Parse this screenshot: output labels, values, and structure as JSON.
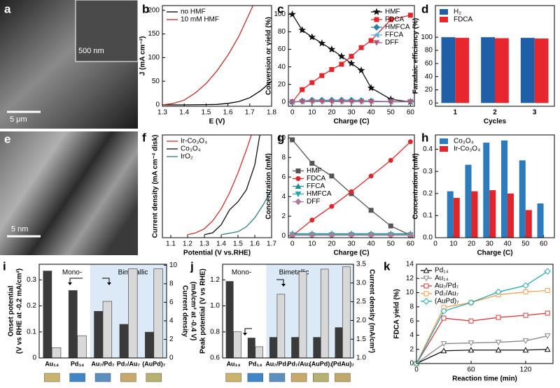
{
  "images": [
    {
      "label": "a",
      "texts": [
        "5 μm",
        "500 nm"
      ]
    },
    {
      "label": "e",
      "texts": [
        "5 nm"
      ]
    }
  ],
  "chart_data": [
    {
      "type": "line",
      "label": "b",
      "xlabel": "E (V)",
      "ylabel": [
        "J (mA cm⁻²)"
      ],
      "xlim": [
        1.3,
        1.8
      ],
      "xticks": [
        1.3,
        1.4,
        1.5,
        1.6,
        1.7,
        1.8
      ],
      "ylim": [
        -3,
        210
      ],
      "yticks": [
        0,
        50,
        100,
        150,
        200
      ],
      "legend": "upper left",
      "series": [
        {
          "name": "no HMF",
          "color": "#000000",
          "x": [
            1.3,
            1.4,
            1.5,
            1.55,
            1.6,
            1.65,
            1.7,
            1.75,
            1.8
          ],
          "values": [
            0,
            0,
            0.5,
            1,
            3,
            7,
            15,
            30,
            50
          ]
        },
        {
          "name": "10 mM HMF",
          "color": "#c0302a",
          "x": [
            1.3,
            1.35,
            1.4,
            1.45,
            1.5,
            1.55,
            1.6,
            1.65,
            1.7,
            1.715
          ],
          "values": [
            0,
            3,
            10,
            25,
            45,
            72,
            105,
            145,
            195,
            210
          ]
        }
      ]
    },
    {
      "type": "line",
      "label": "c",
      "xlabel": "Charge (C)",
      "ylabel": [
        "Conversion or yield (%)"
      ],
      "xlim": [
        -2,
        62
      ],
      "xticks": [
        0,
        10,
        20,
        30,
        40,
        50,
        60
      ],
      "ylim": [
        -5,
        110
      ],
      "yticks": [
        0,
        20,
        40,
        60,
        80,
        100
      ],
      "legend": "upper right",
      "x": [
        0,
        5,
        10,
        15,
        20,
        25,
        30,
        35,
        40,
        50,
        60
      ],
      "series": [
        {
          "name": "HMF",
          "color": "#111111",
          "marker": "star",
          "values": [
            100,
            82,
            74,
            67,
            60,
            52,
            44,
            36,
            16,
            3,
            0
          ]
        },
        {
          "name": "FDCA",
          "color": "#e0262b",
          "marker": "square",
          "values": [
            0,
            14,
            22,
            30,
            37,
            43,
            52,
            62,
            70,
            94,
            99
          ]
        },
        {
          "name": "HMFCA",
          "color": "#2a7fa8",
          "marker": "diamond",
          "values": [
            0,
            1,
            2,
            2,
            2,
            2,
            2,
            1.5,
            1,
            0.5,
            0.3
          ]
        },
        {
          "name": "FFCA",
          "color": "#6aaed6",
          "marker": "tri-left",
          "values": [
            0,
            0.5,
            1,
            1,
            1,
            1,
            1,
            1,
            0.5,
            0.3,
            0.2
          ]
        },
        {
          "name": "DFF",
          "color": "#b05a7a",
          "marker": "tri-down",
          "values": [
            0,
            0.2,
            0.3,
            0.3,
            0.3,
            0.3,
            0.2,
            0.2,
            0.2,
            0.1,
            0.1
          ]
        }
      ]
    },
    {
      "type": "bar",
      "label": "d",
      "xlabel": "Cycles",
      "ylabel": [
        "Faradaic efficiency (%)"
      ],
      "categories": [
        "1",
        "2",
        "3"
      ],
      "ylim": [
        -5,
        148
      ],
      "yticks": [
        0,
        20,
        40,
        60,
        80,
        100
      ],
      "legend": "upper left",
      "series": [
        {
          "name": "H₂",
          "color": "#1f5fa8",
          "values": [
            100,
            100,
            99
          ]
        },
        {
          "name": "FDCA",
          "color": "#e8262e",
          "values": [
            99,
            98.5,
            98
          ]
        }
      ]
    },
    {
      "type": "line",
      "label": "f",
      "xlabel": "Potential (V vs.RHE)",
      "ylabel": [
        "Current density (mA cm⁻² disk)"
      ],
      "xlim": [
        1.05,
        1.7
      ],
      "xticks": [
        1.1,
        1.2,
        1.3,
        1.4,
        1.5,
        1.6,
        1.7
      ],
      "ylim": [
        -3,
        100
      ],
      "legend": "upper left",
      "series": [
        {
          "name": "Ir-Co₃O₄",
          "color": "#d23030",
          "x": [
            1.2,
            1.25,
            1.3,
            1.35,
            1.4,
            1.45,
            1.5,
            1.55,
            1.58
          ],
          "values": [
            0,
            2,
            6,
            14,
            26,
            42,
            62,
            85,
            100
          ]
        },
        {
          "name": "Co₃O₄",
          "color": "#111111",
          "x": [
            1.3,
            1.35,
            1.4,
            1.45,
            1.5,
            1.55,
            1.6,
            1.63
          ],
          "values": [
            0,
            2,
            10,
            25,
            33,
            45,
            70,
            100
          ]
        },
        {
          "name": "IrO₂",
          "color": "#2e7d80",
          "x": [
            1.4,
            1.5,
            1.55,
            1.6,
            1.65,
            1.7
          ],
          "values": [
            0,
            3,
            8,
            17,
            30,
            45
          ]
        }
      ]
    },
    {
      "type": "line",
      "label": "g",
      "xlabel": "Charge (C)",
      "ylabel": [
        "Concentration (mM)"
      ],
      "xlim": [
        -2,
        62
      ],
      "xticks": [
        0,
        10,
        20,
        30,
        40,
        50,
        60
      ],
      "ylim": [
        -0.2,
        10.3
      ],
      "yticks": [
        0,
        2,
        4,
        6,
        8,
        10
      ],
      "legend": "center left",
      "x": [
        0,
        10,
        20,
        30,
        40,
        50,
        60
      ],
      "series": [
        {
          "name": "HMF",
          "color": "#555555",
          "marker": "square",
          "values": [
            9.8,
            7.4,
            6.1,
            4.3,
            2.6,
            1.0,
            0.05
          ]
        },
        {
          "name": "FDCA",
          "color": "#e0262b",
          "marker": "circle",
          "values": [
            0,
            1.6,
            3.0,
            4.5,
            6.1,
            7.7,
            9.6
          ]
        },
        {
          "name": "FFCA",
          "color": "#1f8a8a",
          "marker": "triangle",
          "values": [
            0.2,
            0.2,
            0.2,
            0.2,
            0.2,
            0.2,
            0.2
          ]
        },
        {
          "name": "HMFCA",
          "color": "#2aa6b0",
          "marker": "tri-down",
          "values": [
            0.1,
            0.1,
            0.1,
            0.1,
            0.1,
            0.1,
            0.1
          ]
        },
        {
          "name": "DFF",
          "color": "#b07a9a",
          "marker": "diamond",
          "values": [
            0.05,
            0.05,
            0.05,
            0.05,
            0.05,
            0.05,
            0.05
          ]
        }
      ]
    },
    {
      "type": "bar",
      "label": "h",
      "xlabel": "Charge (C)",
      "ylabel": [
        "Concentration (mM)"
      ],
      "x": [
        10,
        20,
        30,
        40,
        50,
        60
      ],
      "xlim": [
        0,
        66
      ],
      "xticks": [
        0,
        10,
        20,
        30,
        40,
        50,
        60
      ],
      "ylim": [
        0,
        0.465
      ],
      "yticks": [
        {
          "value": 0,
          "label": "0.0"
        },
        0.1,
        0.2,
        0.3,
        0.4
      ],
      "legend": "upper left",
      "series": [
        {
          "name": "Co₃O₄",
          "color": "#2b7bbd",
          "values": [
            0.21,
            0.33,
            0.43,
            0.44,
            0.35,
            0.155
          ]
        },
        {
          "name": "Ir-Co₃O₄",
          "color": "#e0262b",
          "values": [
            0.18,
            0.21,
            0.215,
            0.2,
            0.125,
            null
          ]
        }
      ]
    },
    {
      "type": "bar",
      "label": "i",
      "ylabel": [
        "Onset potential",
        "(V vs RHE at -0.2 mA/cm²)"
      ],
      "y2label": [
        "Current density",
        "(mA/cm² at -0.4 V)"
      ],
      "annotations": [
        "Mono-",
        "Bimetallic"
      ],
      "categories": [
        "Au₁₄",
        "Pd₁₄",
        "Au₇/Pd₇",
        "Pd₇/Au₇",
        "(AuPd)₇"
      ],
      "ylim": [
        0,
        0.36
      ],
      "yticks": [
        0,
        0.1,
        0.2,
        0.3
      ],
      "y2lim": [
        0,
        10.1
      ],
      "y2ticks": [
        0,
        2,
        4,
        6,
        8,
        10
      ],
      "series": [
        {
          "color": "#3a3a3a",
          "values": [
            0.335,
            0.26,
            0.18,
            0.13,
            0.1
          ]
        },
        {
          "color": "#d8d8d8",
          "axis": "y2",
          "values": [
            1.1,
            2.4,
            6.1,
            9.6,
            9.6
          ]
        }
      ]
    },
    {
      "type": "bar",
      "label": "j",
      "ylabel": [
        "Peak potential (V vs RHE)"
      ],
      "y2label": [
        "Current density (mA/cm²)"
      ],
      "annotations": [
        "Mono-",
        "Bimetallic"
      ],
      "categories": [
        "Au₁₄",
        "Pd₁₄",
        "Au₇/Pd₇",
        "Pd₇/Au₇",
        "(AuPd)₇",
        "(PdAu)₇"
      ],
      "ylim": [
        0.6,
        1.32
      ],
      "yticks": [
        0.6,
        0.8,
        {
          "value": 1,
          "label": "1.0"
        },
        1.2
      ],
      "y2lim": [
        1,
        3.5
      ],
      "y2ticks": [
        {
          "value": 1,
          "label": "1.0"
        },
        1.5,
        {
          "value": 2,
          "label": "2.0"
        },
        2.5,
        {
          "value": 3,
          "label": "3.0"
        },
        3.5
      ],
      "series": [
        {
          "color": "#3a3a3a",
          "values": [
            1.19,
            0.755,
            0.76,
            0.76,
            0.76,
            0.835
          ]
        },
        {
          "color": "#d8d8d8",
          "axis": "y2",
          "values": [
            1.7,
            1.3,
            2.7,
            3.3,
            3.37,
            3.43
          ]
        }
      ]
    },
    {
      "type": "line",
      "label": "k",
      "xlabel": "Reaction time (min)",
      "ylabel": [
        "FDCA yield (%)"
      ],
      "xlim": [
        0,
        150
      ],
      "xticks": [
        0,
        60,
        120
      ],
      "ylim": [
        0,
        14
      ],
      "yticks": [
        0,
        2,
        4,
        6,
        8,
        10,
        12,
        14
      ],
      "legend": "upper left",
      "x": [
        0,
        30,
        60,
        90,
        120,
        144
      ],
      "series": [
        {
          "name": "Pd₁₄",
          "color": "#111111",
          "marker": "triangle",
          "open": true,
          "values": [
            0,
            1.8,
            1.9,
            1.9,
            1.9,
            2.0
          ]
        },
        {
          "name": "Au₁₄",
          "color": "#888888",
          "marker": "tri-down",
          "open": true,
          "values": [
            0,
            2.8,
            2.9,
            3.0,
            3.2,
            3.9
          ]
        },
        {
          "name": "Au₇/Pd₇",
          "color": "#d43a3a",
          "marker": "square",
          "open": true,
          "values": [
            0,
            6.4,
            6.0,
            6.5,
            6.8,
            7.1
          ]
        },
        {
          "name": "Pd₇/Au₇",
          "color": "#f0a050",
          "marker": "square",
          "open": true,
          "values": [
            0,
            7.9,
            8.6,
            9.7,
            10.1,
            10.3
          ]
        },
        {
          "name": "(AuPd)₇",
          "color": "#2aa6b0",
          "marker": "diamond",
          "open": true,
          "values": [
            0,
            7.4,
            8.6,
            10.1,
            11.0,
            13.0
          ]
        }
      ]
    }
  ]
}
